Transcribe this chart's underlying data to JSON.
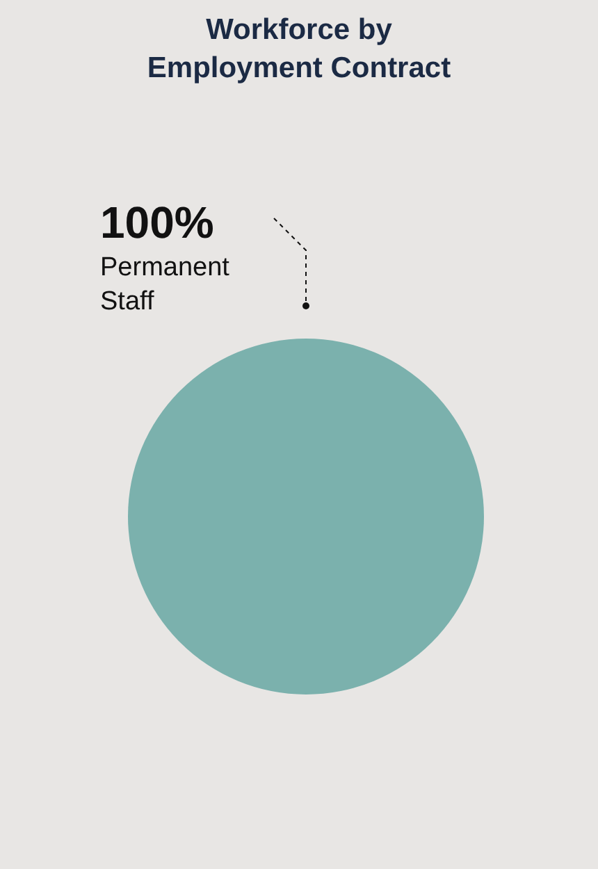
{
  "chart_data": {
    "type": "pie",
    "title": "Workforce by\nEmployment Contract",
    "categories": [
      "Permanent Staff"
    ],
    "values": [
      100
    ],
    "colors": [
      "#7bb1ad"
    ],
    "value_labels": [
      "100%"
    ],
    "legend": false
  }
}
